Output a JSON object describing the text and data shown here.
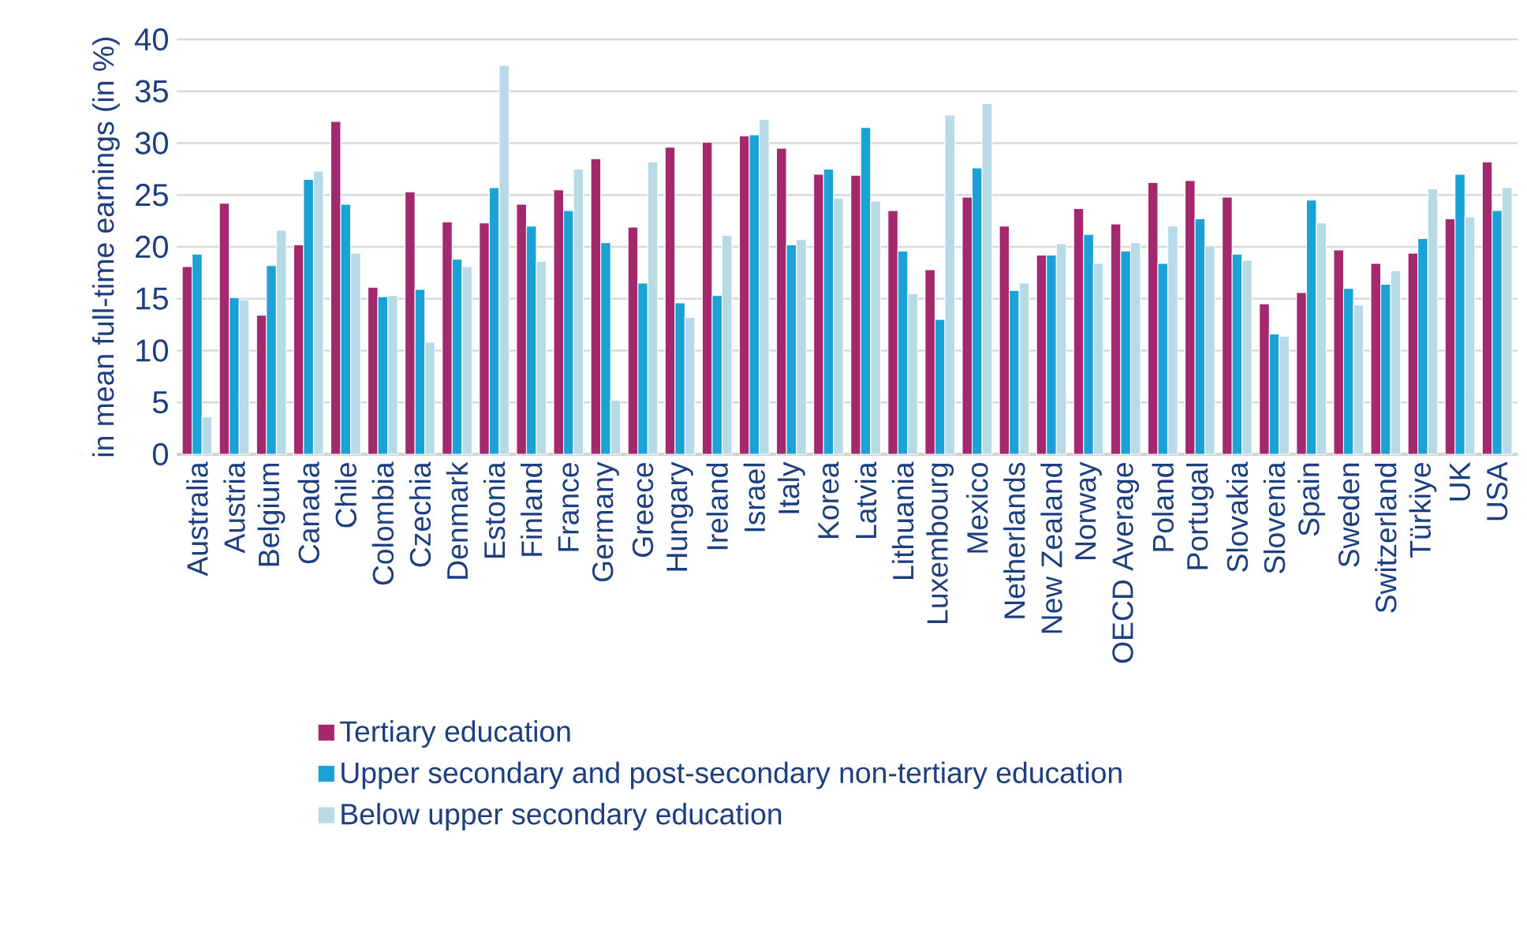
{
  "chart_data": {
    "type": "bar",
    "ylabel": "in mean full-time earnings (in %)",
    "categories": [
      "Australia",
      "Austria",
      "Belgium",
      "Canada",
      "Chile",
      "Colombia",
      "Czechia",
      "Denmark",
      "Estonia",
      "Finland",
      "France",
      "Germany",
      "Greece",
      "Hungary",
      "Ireland",
      "Israel",
      "Italy",
      "Korea",
      "Latvia",
      "Lithuania",
      "Luxembourg",
      "Mexico",
      "Netherlands",
      "New Zealand",
      "Norway",
      "OECD Average",
      "Poland",
      "Portugal",
      "Slovakia",
      "Slovenia",
      "Spain",
      "Sweden",
      "Switzerland",
      "Türkiye",
      "UK",
      "USA"
    ],
    "series": [
      {
        "name": "Tertiary education",
        "color": "#a3286e",
        "values": [
          18.1,
          24.2,
          13.4,
          20.2,
          32.1,
          16.1,
          25.3,
          22.4,
          22.3,
          24.1,
          25.5,
          28.5,
          21.9,
          29.6,
          30.1,
          30.7,
          29.5,
          27.0,
          26.9,
          23.5,
          17.8,
          24.8,
          22.0,
          19.2,
          23.7,
          22.2,
          26.2,
          26.4,
          24.8,
          14.5,
          15.6,
          19.7,
          18.4,
          19.4,
          22.7,
          28.2
        ]
      },
      {
        "name": "Upper secondary and post-secondary non-tertiary education",
        "color": "#1aa2d6",
        "values": [
          19.3,
          15.1,
          18.2,
          26.5,
          24.1,
          15.2,
          15.9,
          18.8,
          25.7,
          22.0,
          23.5,
          20.4,
          16.5,
          14.6,
          15.3,
          30.8,
          20.2,
          27.5,
          31.5,
          19.6,
          13.0,
          27.6,
          15.8,
          19.2,
          21.2,
          19.6,
          18.4,
          22.7,
          19.3,
          11.6,
          24.5,
          16.0,
          16.4,
          20.8,
          27.0,
          23.5
        ]
      },
      {
        "name": "Below upper secondary education",
        "color": "#b6dbe6",
        "values": [
          3.6,
          14.9,
          21.6,
          27.3,
          19.4,
          15.3,
          10.8,
          18.1,
          37.5,
          18.6,
          27.5,
          5.2,
          28.2,
          13.2,
          21.1,
          32.3,
          20.7,
          24.7,
          24.4,
          15.5,
          32.7,
          33.8,
          16.5,
          20.3,
          18.4,
          20.4,
          22.0,
          20.1,
          18.7,
          11.4,
          22.3,
          14.4,
          17.7,
          25.6,
          22.9,
          25.7
        ]
      }
    ],
    "ylim": [
      0,
      40
    ],
    "yticks": [
      0,
      5,
      10,
      15,
      20,
      25,
      30,
      35,
      40
    ],
    "grid": "y",
    "legend": "bottom"
  }
}
